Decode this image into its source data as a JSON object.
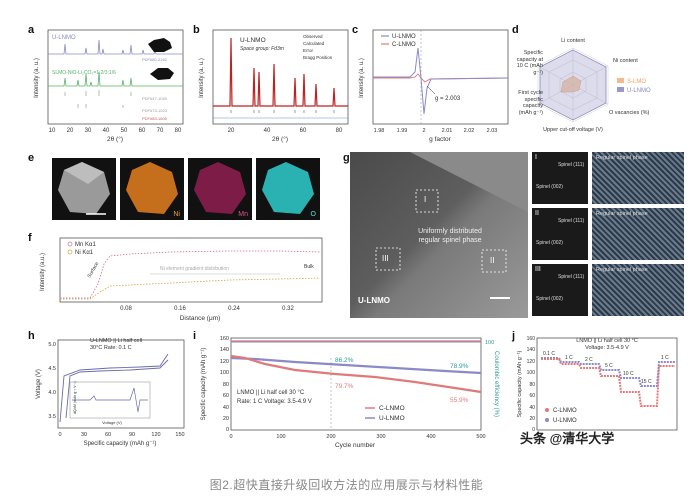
{
  "caption": "图2.超快直接升级回收方法的应用展示与材料性能",
  "watermark": "头条 @清华大学",
  "panel_labels": [
    "a",
    "b",
    "c",
    "d",
    "e",
    "f",
    "g",
    "h",
    "i",
    "j"
  ],
  "a": {
    "ylabel": "Intensity (a. u.)",
    "xlabel": "2θ (°)",
    "xticks": [
      "10",
      "20",
      "30",
      "40",
      "50",
      "60",
      "70",
      "80"
    ],
    "traces": [
      {
        "name": "U-LNMO",
        "color": "#8a8ac6"
      },
      {
        "name": "SLMO-NiO-Li₂CO₃=1:2/3:1/6",
        "color": "#57b46a"
      }
    ],
    "refs": [
      "PDF#80-2162",
      "PDF#47-1049",
      "PDF#73-1023",
      "PDF#83-1605"
    ]
  },
  "b": {
    "title": "U-LNMO",
    "space_group": "Space group: Fd3m",
    "legend": [
      "Observed",
      "Calculated",
      "Error",
      "Bragg Position"
    ],
    "ylabel": "Intensity (a. u.)",
    "xlabel": "2θ (°)",
    "xticks": [
      "20",
      "40",
      "60",
      "80"
    ]
  },
  "c": {
    "legend": [
      "U-LNMO",
      "C-LNMO"
    ],
    "annotation": "g = 2.003",
    "ylabel": "Intensity (a. u.)",
    "xlabel": "g factor",
    "xticks": [
      "1.98",
      "1.99",
      "2",
      "2.01",
      "2.02",
      "2.03"
    ]
  },
  "d": {
    "axes": [
      "Li content",
      "Ni content",
      "O vacancies (%)",
      "Upper cut-off voltage (V)",
      "First cycle specific capacity (mAh g⁻¹)",
      "Specific capacity at 10 C (mAh g⁻¹)"
    ],
    "legend": [
      "S-LMO",
      "U-LNMO"
    ],
    "colors": [
      "#f5b98a",
      "#9a9ac8"
    ]
  },
  "e": {
    "labels": [
      "Ni",
      "Mn",
      "O"
    ]
  },
  "f": {
    "legend": [
      "Mn Kα1",
      "Ni Kα1"
    ],
    "notes": [
      "Surface",
      "Ni element gradient distribution",
      "Bulk"
    ],
    "ylabel": "Intensity (a.u.)",
    "xlabel": "Distance (μm)",
    "xticks": [
      "0.08",
      "0.16",
      "0.24",
      "0.32"
    ]
  },
  "g": {
    "center_text_1": "Uniformly distributed",
    "center_text_2": "regular spinel phase",
    "sample": "U-LNMO",
    "regions": [
      "I",
      "II",
      "III"
    ],
    "fft_labels": [
      "Spinel (111)",
      "Spinel (002)"
    ],
    "phase_labels": [
      "Regular spinel phase",
      "Regular spinel phase",
      "Regular spinel phase"
    ]
  },
  "h": {
    "title_1": "U-LNMO || Li half cell",
    "title_2": "30°C   Rate: 0.1 C",
    "ylabel": "Voltage (V)",
    "xlabel": "Specific capacity (mAh g⁻¹)",
    "xticks": [
      "0",
      "30",
      "60",
      "90",
      "120",
      "150"
    ],
    "yticks": [
      "3.5",
      "4.0",
      "4.5",
      "5.0"
    ],
    "inset_ylabel": "dQ/dV (mAh g⁻¹ V⁻¹)",
    "inset_xlabel": "Voltage (V)"
  },
  "i": {
    "ylabel": "Specific capacity (mAh g⁻¹)",
    "ylabel2": "Coulombic efficiency (%)",
    "xlabel": "Cycle number",
    "xticks": [
      "0",
      "100",
      "200",
      "300",
      "400",
      "500"
    ],
    "yticks": [
      "0",
      "20",
      "40",
      "60",
      "80",
      "100",
      "120",
      "140",
      "160"
    ],
    "y2tick": "100",
    "info_1": "LNMO || Li half cell   30 °C",
    "info_2": "Rate: 1 C    Voltage: 3.5-4.9 V",
    "pct": [
      "86.2%",
      "79.7%",
      "78.9%",
      "55.9%"
    ],
    "legend": [
      "C-LNMO",
      "U-LNMO"
    ]
  },
  "j": {
    "title_1": "LNMO || Li half cell   30 °C",
    "title_2": "Voltage: 3.5-4.9 V",
    "ylabel": "Specific capacity (mAh g⁻¹)",
    "rates": [
      "0.1 C",
      "1 C",
      "2 C",
      "5 C",
      "10 C",
      "15 C",
      "1 C"
    ],
    "yticks": [
      "0",
      "20",
      "40",
      "60",
      "80",
      "100",
      "120",
      "140",
      "160"
    ],
    "legend": [
      "C-LNMO",
      "U-LNMO"
    ]
  }
}
